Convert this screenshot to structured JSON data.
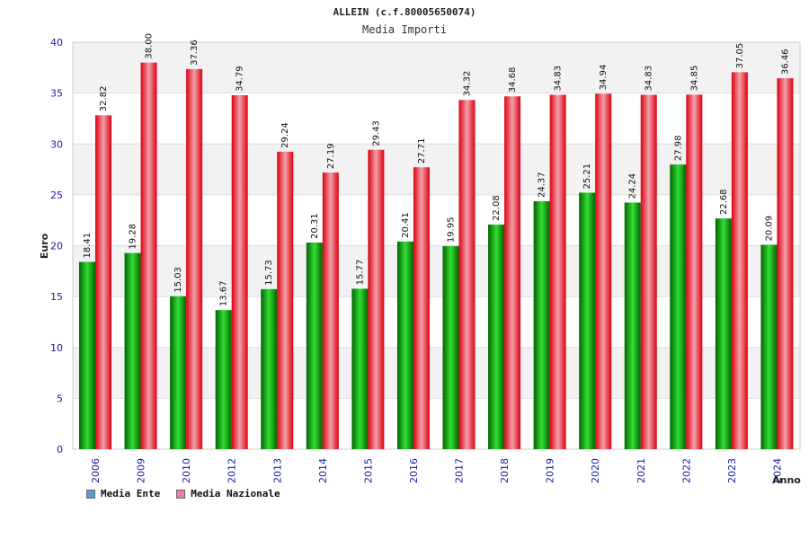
{
  "colors": {
    "ente_dark": "#006400",
    "ente_light": "#33dd33",
    "naz_dark": "#dd0011",
    "naz_light": "#f2a0a8",
    "legend_ente": "#5b9bd5",
    "legend_naz": "#e87bb0",
    "band": "#f2f2f2",
    "grid": "#dddddd"
  },
  "legend": [
    {
      "label": "Media Ente",
      "color": "#5b9bd5"
    },
    {
      "label": "Media Nazionale",
      "color": "#e87bb0"
    }
  ],
  "chart_data": {
    "type": "bar",
    "title": "ALLEIN (c.f.80005650074)",
    "subtitle": "Media Importi",
    "xlabel": "Anno",
    "ylabel": "Euro",
    "ylim": [
      0,
      40
    ],
    "yticks": [
      0,
      5,
      10,
      15,
      20,
      25,
      30,
      35,
      40
    ],
    "grid": true,
    "legend_position": "bottom-left",
    "categories": [
      "2006",
      "2009",
      "2010",
      "2012",
      "2013",
      "2014",
      "2015",
      "2016",
      "2017",
      "2018",
      "2019",
      "2020",
      "2021",
      "2022",
      "2023",
      "2024"
    ],
    "series": [
      {
        "name": "Media Ente",
        "values": [
          18.41,
          19.28,
          15.03,
          13.67,
          15.73,
          20.31,
          15.77,
          20.41,
          19.95,
          22.08,
          24.37,
          25.21,
          24.24,
          27.98,
          22.68,
          20.09
        ],
        "labels": [
          "18.41",
          "19.28",
          "15.03",
          "13.67",
          "15.73",
          "20.31",
          "15.77",
          "20.41",
          "19.95",
          "22.08",
          "24.37",
          "25.21",
          "24.24",
          "27.98",
          "22.68",
          "20.09"
        ]
      },
      {
        "name": "Media Nazionale",
        "values": [
          32.82,
          38.0,
          37.36,
          34.79,
          29.24,
          27.19,
          29.43,
          27.71,
          34.32,
          34.68,
          34.83,
          34.94,
          34.83,
          34.85,
          37.05,
          36.46
        ],
        "labels": [
          "32.82",
          "38.00",
          "37.36",
          "34.79",
          "29.24",
          "27.19",
          "29.43",
          "27.71",
          "34.32",
          "34.68",
          "34.83",
          "34.94",
          "34.83",
          "34.85",
          "37.05",
          "36.46"
        ]
      }
    ]
  }
}
